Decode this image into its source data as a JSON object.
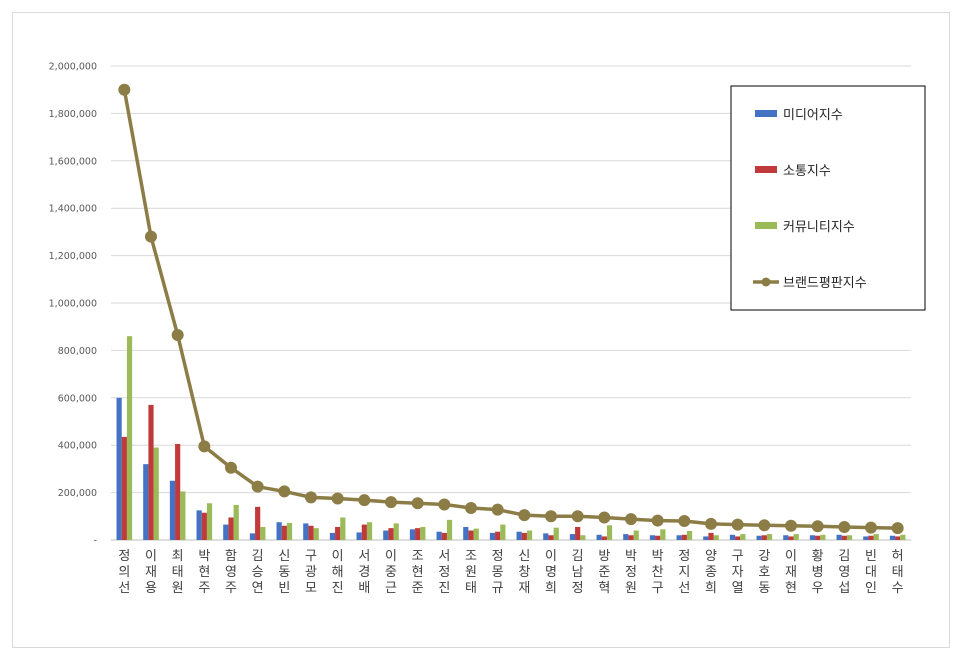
{
  "chart_data": {
    "type": "bar",
    "categories": [
      "정의선",
      "이재용",
      "최태원",
      "박현주",
      "함영주",
      "김승연",
      "신동빈",
      "구광모",
      "이해진",
      "서경배",
      "이중근",
      "조현준",
      "서정진",
      "조원태",
      "정몽규",
      "신창재",
      "이명희",
      "김남정",
      "방준혁",
      "박정원",
      "박찬구",
      "정지선",
      "양종희",
      "구자열",
      "강호동",
      "이재현",
      "황병우",
      "김영섭",
      "빈대인",
      "허태수"
    ],
    "series": [
      {
        "name": "미디어지수",
        "kind": "bar",
        "color": "#4472c4",
        "values": [
          600000,
          320000,
          250000,
          125000,
          65000,
          28000,
          75000,
          70000,
          30000,
          32000,
          40000,
          45000,
          35000,
          55000,
          30000,
          35000,
          28000,
          25000,
          22000,
          25000,
          20000,
          20000,
          15000,
          22000,
          18000,
          20000,
          20000,
          22000,
          15000,
          18000
        ]
      },
      {
        "name": "소통지수",
        "kind": "bar",
        "color": "#c0393b",
        "values": [
          435000,
          570000,
          405000,
          115000,
          95000,
          140000,
          60000,
          60000,
          55000,
          65000,
          50000,
          50000,
          30000,
          40000,
          35000,
          30000,
          20000,
          55000,
          15000,
          20000,
          18000,
          22000,
          30000,
          15000,
          20000,
          15000,
          18000,
          18000,
          18000,
          15000
        ]
      },
      {
        "name": "커뮤니티지수",
        "kind": "bar",
        "color": "#9bbb59",
        "values": [
          860000,
          390000,
          205000,
          155000,
          148000,
          55000,
          72000,
          50000,
          95000,
          75000,
          70000,
          55000,
          85000,
          48000,
          65000,
          40000,
          52000,
          20000,
          62000,
          40000,
          45000,
          38000,
          20000,
          25000,
          25000,
          25000,
          22000,
          20000,
          25000,
          22000
        ]
      },
      {
        "name": "브랜드평판지수",
        "kind": "line",
        "color": "#8c7d46",
        "values": [
          1900000,
          1280000,
          865000,
          395000,
          305000,
          225000,
          205000,
          180000,
          175000,
          168000,
          160000,
          155000,
          150000,
          135000,
          128000,
          105000,
          100000,
          100000,
          95000,
          88000,
          82000,
          80000,
          68000,
          65000,
          62000,
          60000,
          58000,
          55000,
          52000,
          50000
        ]
      }
    ],
    "ylim": [
      0,
      2000000
    ],
    "yticks": [
      "-",
      "200,000",
      "400,000",
      "600,000",
      "800,000",
      "1,000,000",
      "1,200,000",
      "1,400,000",
      "1,600,000",
      "1,800,000",
      "2,000,000"
    ],
    "grid": true,
    "legend_position": "right"
  }
}
